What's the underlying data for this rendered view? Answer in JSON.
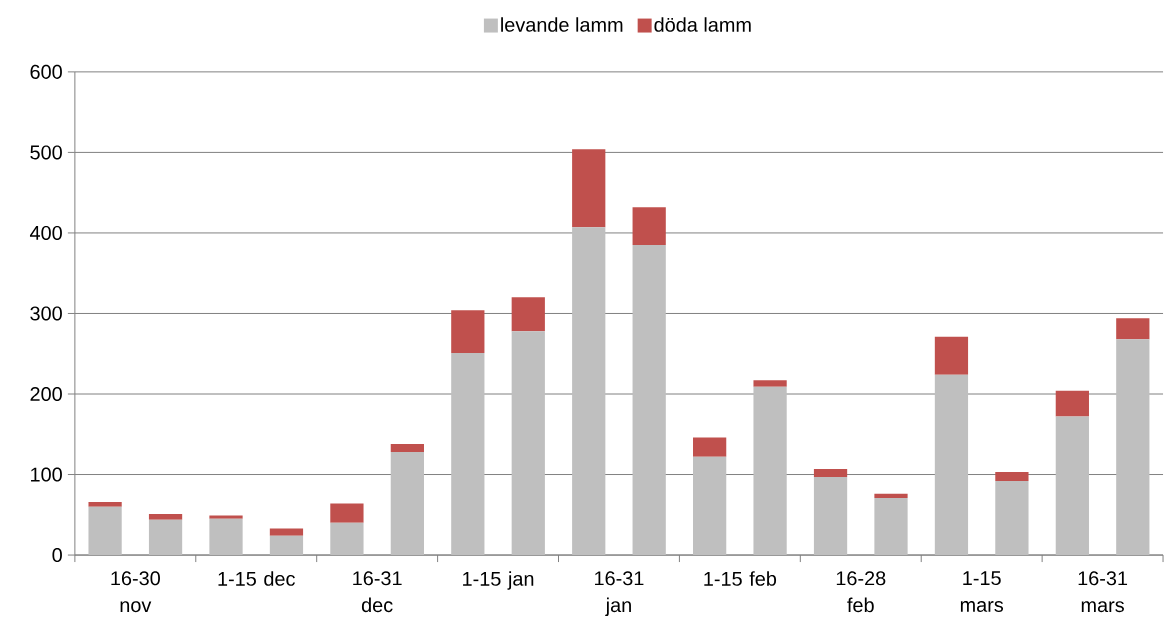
{
  "chart_data": {
    "type": "bar",
    "stacked": true,
    "categories": [
      "16-30 nov",
      null,
      "1-15 dec",
      null,
      "16-31 dec",
      null,
      "1-15 jan",
      null,
      "16-31 jan",
      null,
      "1-15 feb",
      null,
      "16-28 feb",
      null,
      "1-15 mars",
      null,
      "16-31 mars",
      null
    ],
    "series": [
      {
        "name": "levande lamm",
        "color": "#bfbfbf",
        "values": [
          60,
          44,
          45,
          24,
          40,
          128,
          251,
          278,
          407,
          385,
          122,
          209,
          97,
          71,
          224,
          92,
          172,
          268
        ]
      },
      {
        "name": "döda lamm",
        "color": "#c0504d",
        "values": [
          6,
          7,
          4,
          9,
          24,
          10,
          53,
          42,
          97,
          47,
          24,
          8,
          10,
          5,
          47,
          11,
          32,
          26
        ]
      }
    ],
    "ylim": [
      0,
      600
    ],
    "yticks": [
      0,
      100,
      200,
      300,
      400,
      500,
      600
    ],
    "grid": "y",
    "legend": "top"
  }
}
